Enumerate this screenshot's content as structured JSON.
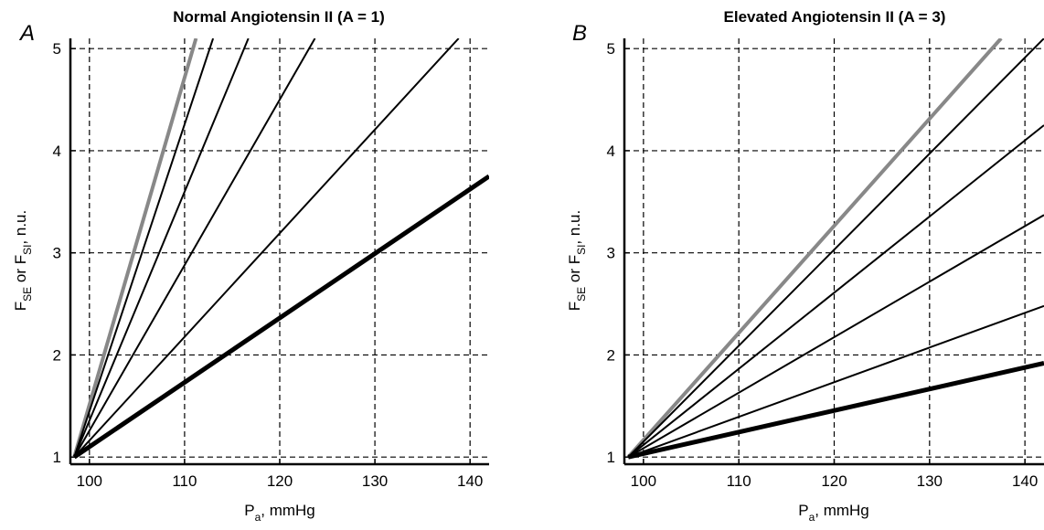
{
  "chart_data": [
    {
      "type": "line",
      "panel_label": "A",
      "title": "Normal Angiotensin II (A = 1)",
      "xlabel": {
        "main": "P",
        "sub": "a",
        "rest": ", mmHg"
      },
      "ylabel": {
        "p1": "F",
        "s1": "SE",
        "p2": " or F",
        "s2": "SI",
        "p3": ", n.u."
      },
      "xlim": [
        98,
        142
      ],
      "ylim": [
        0.93,
        5.1
      ],
      "xticks": [
        100,
        110,
        120,
        130,
        140
      ],
      "yticks": [
        1,
        2,
        3,
        4,
        5
      ],
      "grid": true,
      "series": [
        {
          "style": "gray-thick",
          "x": [
            98.4,
            111.2
          ],
          "y": [
            1,
            5.1
          ]
        },
        {
          "style": "thin",
          "x": [
            98.4,
            113.0
          ],
          "y": [
            1,
            5.1
          ]
        },
        {
          "style": "thin",
          "x": [
            98.4,
            116.7
          ],
          "y": [
            1,
            5.1
          ]
        },
        {
          "style": "thin",
          "x": [
            98.4,
            123.7
          ],
          "y": [
            1,
            5.1
          ]
        },
        {
          "style": "thin",
          "x": [
            98.4,
            138.8
          ],
          "y": [
            1,
            5.1
          ]
        },
        {
          "style": "black-thick",
          "x": [
            98.4,
            142
          ],
          "y": [
            1,
            3.75
          ]
        }
      ]
    },
    {
      "type": "line",
      "panel_label": "B",
      "title": "Elevated Angiotensin II (A = 3)",
      "xlabel": {
        "main": "P",
        "sub": "a",
        "rest": ", mmHg"
      },
      "ylabel": {
        "p1": "F",
        "s1": "SE",
        "p2": " or F",
        "s2": "SI",
        "p3": ", n.u."
      },
      "xlim": [
        98,
        142
      ],
      "ylim": [
        0.93,
        5.1
      ],
      "xticks": [
        100,
        110,
        120,
        130,
        140
      ],
      "yticks": [
        1,
        2,
        3,
        4,
        5
      ],
      "grid": true,
      "series": [
        {
          "style": "gray-thick",
          "x": [
            98.4,
            137.5
          ],
          "y": [
            1,
            5.1
          ]
        },
        {
          "style": "thin",
          "x": [
            98.4,
            142
          ],
          "y": [
            1,
            5.1
          ]
        },
        {
          "style": "thin",
          "x": [
            98.4,
            142
          ],
          "y": [
            1,
            4.25
          ]
        },
        {
          "style": "thin",
          "x": [
            98.4,
            142
          ],
          "y": [
            1,
            3.37
          ]
        },
        {
          "style": "thin",
          "x": [
            98.4,
            142
          ],
          "y": [
            1,
            2.48
          ]
        },
        {
          "style": "black-thick",
          "x": [
            98.4,
            142
          ],
          "y": [
            1,
            1.92
          ]
        }
      ]
    }
  ]
}
